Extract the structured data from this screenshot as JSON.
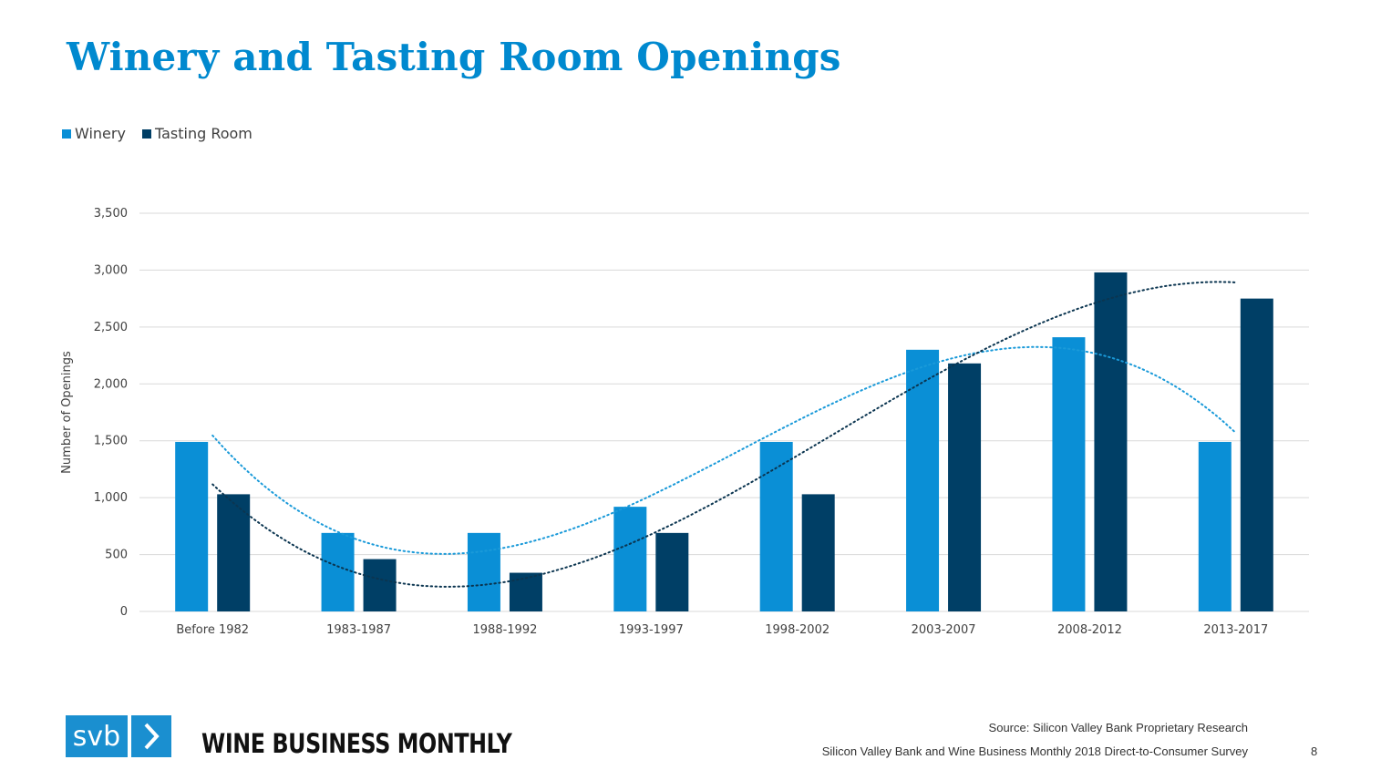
{
  "title": "Winery and Tasting Room Openings",
  "legend": {
    "winery": "Winery",
    "tasting_room": "Tasting Room"
  },
  "colors": {
    "title": "#0089cf",
    "winery": "#0a8fd6",
    "tasting_room": "#003f66",
    "gridline": "#d9d9d9"
  },
  "chart_data": {
    "type": "bar",
    "title": "Winery and Tasting Room Openings",
    "xlabel": "",
    "ylabel": "Number of Openings",
    "ylim": [
      0,
      3500
    ],
    "yticks": [
      0,
      500,
      1000,
      1500,
      2000,
      2500,
      3000,
      3500
    ],
    "ytick_labels": [
      "0",
      "500",
      "1,000",
      "1,500",
      "2,000",
      "2,500",
      "3,000",
      "3,500"
    ],
    "grid": true,
    "legend_position": "top-left",
    "categories": [
      "Before 1982",
      "1983-1987",
      "1988-1992",
      "1993-1997",
      "1998-2002",
      "2003-2007",
      "2008-2012",
      "2013-2017"
    ],
    "series": [
      {
        "name": "Winery",
        "values": [
          1490,
          690,
          690,
          920,
          1490,
          2300,
          2410,
          1490
        ]
      },
      {
        "name": "Tasting Room",
        "values": [
          1030,
          460,
          340,
          690,
          1030,
          2180,
          2980,
          2750
        ]
      }
    ],
    "trendlines": "dotted, one per series"
  },
  "footer": {
    "svb_logo_text": "svb",
    "svb_chevron": "›",
    "wbm_logo_text": "WINE BUSINESS MONTHLY",
    "source": "Source: Silicon Valley Bank Proprietary Research",
    "survey": "Silicon Valley Bank and Wine Business Monthly 2018 Direct-to-Consumer Survey",
    "page_number": "8"
  }
}
